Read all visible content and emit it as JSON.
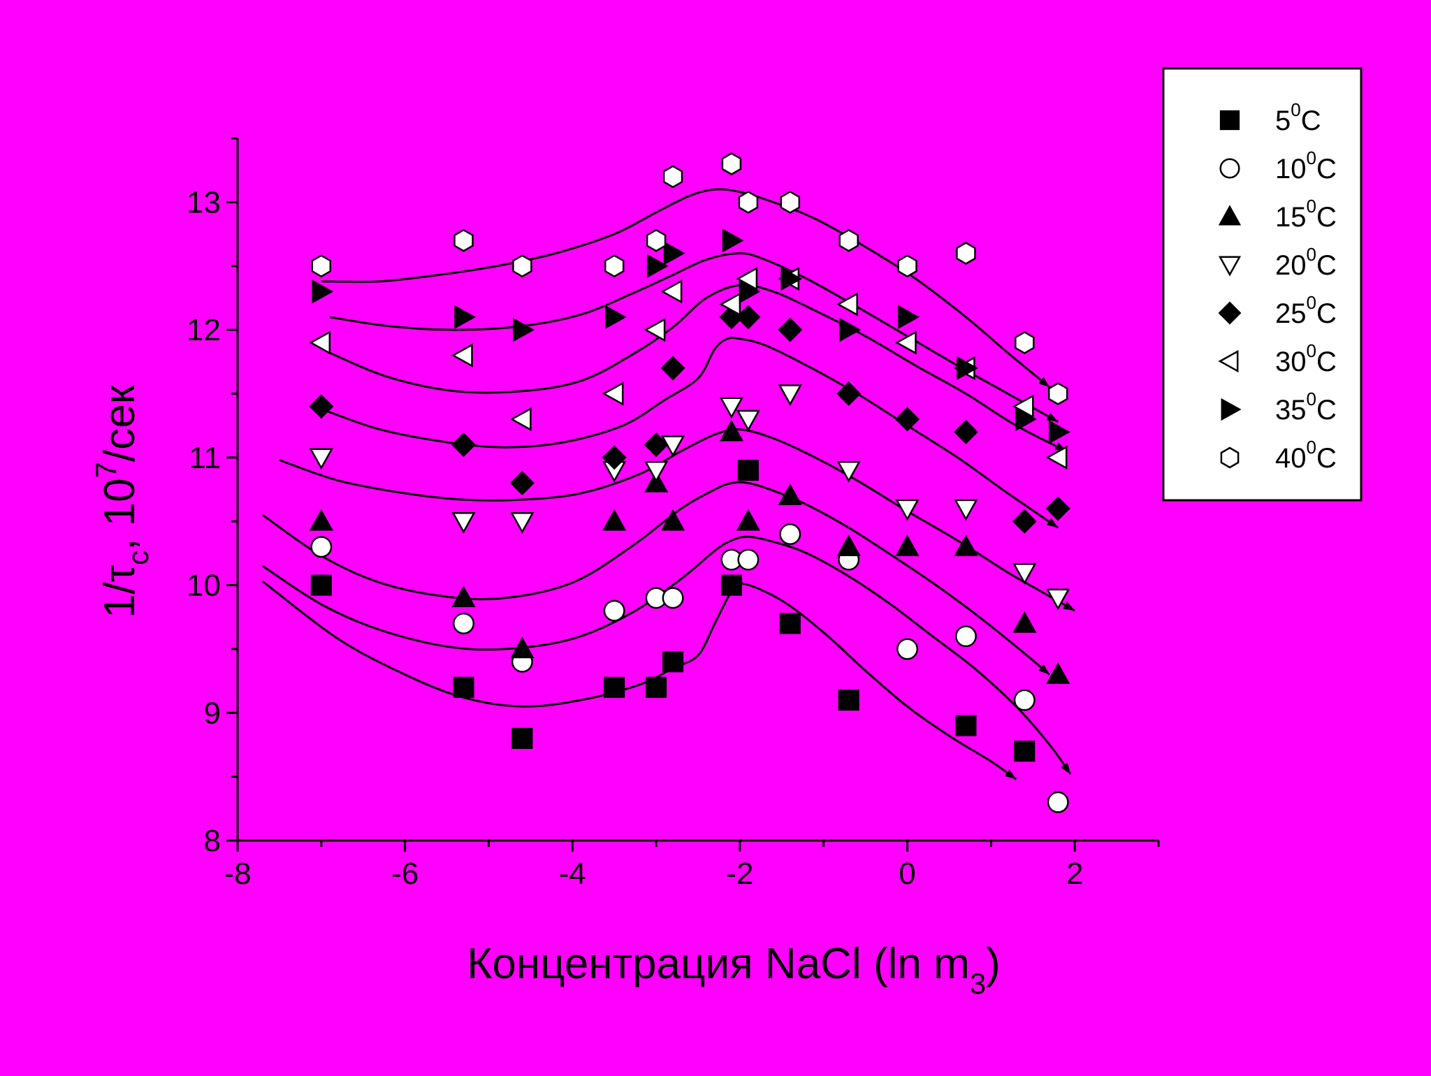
{
  "chart_data": {
    "type": "scatter",
    "title": "",
    "xlabel": "Концентрация NaCl (ln m",
    "xlabel_sub": "3",
    "xlabel_end": ")",
    "ylabel": "1/τ",
    "ylabel_sub": "c",
    "ylabel_mid": ", 10",
    "ylabel_sup": "7",
    "ylabel_end": "/сек",
    "xlim": [
      -8,
      3
    ],
    "ylim": [
      8,
      13.5
    ],
    "x_ticks": [
      -8,
      -6,
      -4,
      -2,
      0,
      2
    ],
    "y_ticks": [
      8,
      9,
      10,
      11,
      12,
      13
    ],
    "x_tick_labels": [
      "-8",
      "-6",
      "-4",
      "-2",
      "0",
      "2"
    ],
    "y_tick_labels": [
      "8",
      "9",
      "10",
      "11",
      "12",
      "13"
    ],
    "legend_position": "top-right",
    "series": [
      {
        "name_main": "5",
        "name_sup": "0",
        "name_unit": "C",
        "marker": "square-filled",
        "x": [
          -7.0,
          -5.3,
          -4.6,
          -3.5,
          -3.0,
          -2.8,
          -2.1,
          -1.9,
          -1.4,
          -0.7,
          0.7,
          1.4
        ],
        "y": [
          10.0,
          9.2,
          8.8,
          9.2,
          9.2,
          9.4,
          10.0,
          10.9,
          9.7,
          9.1,
          8.9,
          8.7
        ],
        "fit_x": [
          -7.7,
          -6.8,
          -6.0,
          -5.3,
          -4.6,
          -3.9,
          -3.2,
          -2.8,
          -2.5,
          -2.3,
          -2.1,
          -1.95,
          -1.5,
          -1.0,
          -0.5,
          0.0,
          0.5,
          1.0,
          1.3
        ],
        "fit_y": [
          10.03,
          9.58,
          9.3,
          9.12,
          9.05,
          9.1,
          9.22,
          9.35,
          9.45,
          9.7,
          9.95,
          10.01,
          9.88,
          9.63,
          9.33,
          9.05,
          8.82,
          8.62,
          8.48
        ]
      },
      {
        "name_main": "10",
        "name_sup": "0",
        "name_unit": "C",
        "marker": "circle-open",
        "x": [
          -7.0,
          -5.3,
          -4.6,
          -3.5,
          -3.0,
          -2.8,
          -2.1,
          -1.9,
          -1.4,
          -0.7,
          0.0,
          0.7,
          1.4,
          1.8
        ],
        "y": [
          10.3,
          9.7,
          9.4,
          9.8,
          9.9,
          9.9,
          10.2,
          10.2,
          10.4,
          10.2,
          9.5,
          9.6,
          9.1,
          8.3
        ],
        "fit_x": [
          -7.7,
          -7.0,
          -6.3,
          -5.5,
          -4.8,
          -4.0,
          -3.3,
          -2.7,
          -2.3,
          -2.1,
          -1.9,
          -1.6,
          -1.2,
          -0.7,
          -0.2,
          0.3,
          0.8,
          1.3,
          1.7,
          1.95
        ],
        "fit_y": [
          10.15,
          9.85,
          9.65,
          9.52,
          9.5,
          9.58,
          9.78,
          10.05,
          10.27,
          10.35,
          10.38,
          10.34,
          10.25,
          10.07,
          9.85,
          9.6,
          9.35,
          9.05,
          8.75,
          8.52
        ]
      },
      {
        "name_main": "15",
        "name_sup": "0",
        "name_unit": "C",
        "marker": "triangle-up-filled",
        "x": [
          -7.0,
          -5.3,
          -4.6,
          -3.5,
          -3.0,
          -2.8,
          -2.1,
          -1.9,
          -1.4,
          -0.7,
          0.0,
          0.7,
          1.4,
          1.8
        ],
        "y": [
          10.5,
          9.9,
          9.5,
          10.5,
          10.8,
          10.5,
          11.2,
          10.5,
          10.7,
          10.3,
          10.3,
          10.3,
          9.7,
          9.3
        ],
        "fit_x": [
          -7.7,
          -7.0,
          -6.3,
          -5.5,
          -4.8,
          -4.0,
          -3.3,
          -2.7,
          -2.3,
          -2.1,
          -1.9,
          -1.6,
          -1.2,
          -0.7,
          -0.2,
          0.3,
          0.8,
          1.3,
          1.7
        ],
        "fit_y": [
          10.55,
          10.23,
          10.02,
          9.91,
          9.9,
          10.02,
          10.3,
          10.6,
          10.75,
          10.8,
          10.8,
          10.74,
          10.63,
          10.45,
          10.24,
          10.02,
          9.78,
          9.52,
          9.3
        ]
      },
      {
        "name_main": "20",
        "name_sup": "0",
        "name_unit": "C",
        "marker": "triangle-down-open",
        "x": [
          -7.0,
          -5.3,
          -4.6,
          -3.5,
          -3.0,
          -2.8,
          -2.1,
          -1.9,
          -1.4,
          -0.7,
          0.0,
          0.7,
          1.4,
          1.8
        ],
        "y": [
          11.0,
          10.5,
          10.5,
          10.9,
          10.9,
          11.1,
          11.4,
          11.3,
          11.5,
          10.9,
          10.6,
          10.6,
          10.1,
          9.9
        ],
        "fit_x": [
          -7.5,
          -6.8,
          -6.0,
          -5.3,
          -4.6,
          -3.9,
          -3.2,
          -2.7,
          -2.3,
          -2.0,
          -1.6,
          -1.1,
          -0.6,
          0.0,
          0.6,
          1.2,
          1.6,
          2.0
        ],
        "fit_y": [
          10.98,
          10.82,
          10.72,
          10.67,
          10.67,
          10.72,
          10.87,
          11.05,
          11.18,
          11.22,
          11.15,
          11.0,
          10.82,
          10.58,
          10.35,
          10.1,
          9.95,
          9.8
        ]
      },
      {
        "name_main": "25",
        "name_sup": "0",
        "name_unit": "C",
        "marker": "diamond-filled",
        "x": [
          -7.0,
          -5.3,
          -4.6,
          -3.5,
          -3.0,
          -2.8,
          -2.1,
          -1.9,
          -1.4,
          -0.7,
          0.0,
          0.7,
          1.4,
          1.8
        ],
        "y": [
          11.4,
          11.1,
          10.8,
          11.0,
          11.1,
          11.7,
          12.1,
          12.1,
          12.0,
          11.5,
          11.3,
          11.2,
          10.5,
          10.6
        ],
        "fit_x": [
          -7.0,
          -6.3,
          -5.5,
          -4.8,
          -4.1,
          -3.4,
          -2.9,
          -2.5,
          -2.3,
          -2.15,
          -2.0,
          -1.7,
          -1.2,
          -0.6,
          0.0,
          0.6,
          1.2,
          1.8
        ],
        "fit_y": [
          11.38,
          11.22,
          11.12,
          11.08,
          11.12,
          11.25,
          11.45,
          11.62,
          11.85,
          11.93,
          11.93,
          11.88,
          11.72,
          11.5,
          11.25,
          11.0,
          10.72,
          10.45
        ]
      },
      {
        "name_main": "30",
        "name_sup": "0",
        "name_unit": "C",
        "marker": "triangle-left-open",
        "x": [
          -7.0,
          -5.3,
          -4.6,
          -3.5,
          -3.0,
          -2.8,
          -2.1,
          -1.9,
          -1.4,
          -0.7,
          0.0,
          0.7,
          1.4,
          1.8
        ],
        "y": [
          11.9,
          11.8,
          11.3,
          11.5,
          12.0,
          12.3,
          12.2,
          12.4,
          12.4,
          12.2,
          11.9,
          11.7,
          11.4,
          11.0
        ],
        "fit_x": [
          -6.9,
          -6.2,
          -5.4,
          -4.6,
          -3.9,
          -3.3,
          -2.8,
          -2.4,
          -2.0,
          -1.6,
          -1.1,
          -0.5,
          0.1,
          0.7,
          1.3,
          1.9
        ],
        "fit_y": [
          11.82,
          11.63,
          11.52,
          11.52,
          11.6,
          11.8,
          12.02,
          12.25,
          12.35,
          12.3,
          12.15,
          11.95,
          11.72,
          11.5,
          11.25,
          11.05
        ]
      },
      {
        "name_main": "35",
        "name_sup": "0",
        "name_unit": "C",
        "marker": "triangle-right-filled",
        "x": [
          -7.0,
          -5.3,
          -4.6,
          -3.5,
          -3.0,
          -2.8,
          -2.1,
          -1.9,
          -1.4,
          -0.7,
          0.0,
          0.7,
          1.4,
          1.8
        ],
        "y": [
          12.3,
          12.1,
          12.0,
          12.1,
          12.5,
          12.6,
          12.7,
          12.3,
          12.4,
          12.0,
          12.1,
          11.7,
          11.3,
          11.2
        ],
        "fit_x": [
          -6.9,
          -6.2,
          -5.4,
          -4.6,
          -3.9,
          -3.3,
          -2.8,
          -2.4,
          -2.0,
          -1.7,
          -1.2,
          -0.6,
          0.0,
          0.6,
          1.2,
          1.8
        ],
        "fit_y": [
          12.1,
          12.03,
          12.0,
          12.03,
          12.12,
          12.28,
          12.43,
          12.55,
          12.6,
          12.55,
          12.4,
          12.18,
          11.95,
          11.72,
          11.5,
          11.28
        ]
      },
      {
        "name_main": "40",
        "name_sup": "0",
        "name_unit": "C",
        "marker": "hexagon-open",
        "x": [
          -7.0,
          -5.3,
          -4.6,
          -3.5,
          -3.0,
          -2.8,
          -2.1,
          -1.9,
          -1.4,
          -0.7,
          0.0,
          0.7,
          1.4,
          1.8
        ],
        "y": [
          12.5,
          12.7,
          12.5,
          12.5,
          12.7,
          13.2,
          13.3,
          13.0,
          13.0,
          12.7,
          12.5,
          12.6,
          11.9,
          11.5
        ],
        "fit_x": [
          -7.0,
          -6.3,
          -5.6,
          -4.9,
          -4.2,
          -3.5,
          -3.0,
          -2.6,
          -2.3,
          -2.0,
          -1.6,
          -1.1,
          -0.5,
          0.1,
          0.7,
          1.2,
          1.7
        ],
        "fit_y": [
          12.38,
          12.38,
          12.43,
          12.5,
          12.6,
          12.75,
          12.92,
          13.05,
          13.1,
          13.08,
          13.0,
          12.87,
          12.65,
          12.4,
          12.1,
          11.82,
          11.55
        ]
      }
    ]
  }
}
